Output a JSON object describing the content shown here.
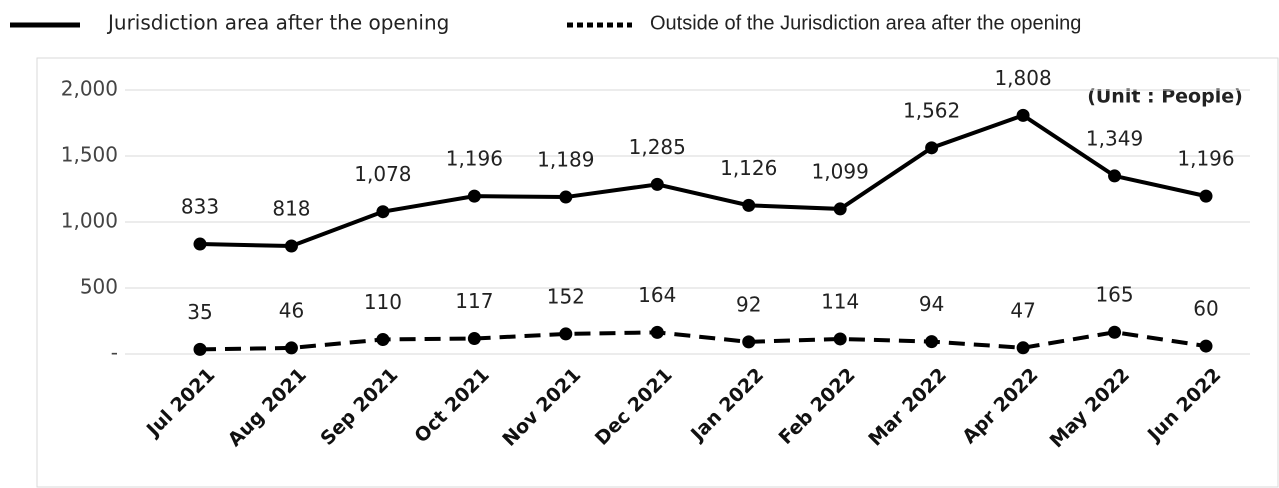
{
  "chart_data": {
    "type": "line",
    "categories": [
      "Jul 2021",
      "Aug 2021",
      "Sep 2021",
      "Oct 2021",
      "Nov 2021",
      "Dec 2021",
      "Jan 2022",
      "Feb 2022",
      "Mar 2022",
      "Apr 2022",
      "May 2022",
      "Jun 2022"
    ],
    "series": [
      {
        "name": "Jurisdiction area after the opening",
        "color": "#000000",
        "dashed": false,
        "values": [
          833,
          818,
          1078,
          1196,
          1189,
          1285,
          1126,
          1099,
          1562,
          1808,
          1349,
          1196
        ],
        "value_labels": [
          "833",
          "818",
          "1,078",
          "1,196",
          "1,189",
          "1,285",
          "1,126",
          "1,099",
          "1,562",
          "1,808",
          "1,349",
          "1,196"
        ]
      },
      {
        "name": "Outside of the Jurisdiction area after the opening",
        "color": "#000000",
        "dashed": true,
        "values": [
          35,
          46,
          110,
          117,
          152,
          164,
          92,
          114,
          94,
          47,
          165,
          60
        ]
      }
    ],
    "annotation": "(Unit : People)",
    "ylim": [
      0,
      2000
    ],
    "yticks": [
      {
        "value": 0,
        "label": "-"
      },
      500,
      {
        "value": 1000,
        "label": "1,000"
      },
      {
        "value": 1500,
        "label": "1,500"
      },
      {
        "value": 2000,
        "label": "2,000"
      }
    ],
    "grid": true
  }
}
